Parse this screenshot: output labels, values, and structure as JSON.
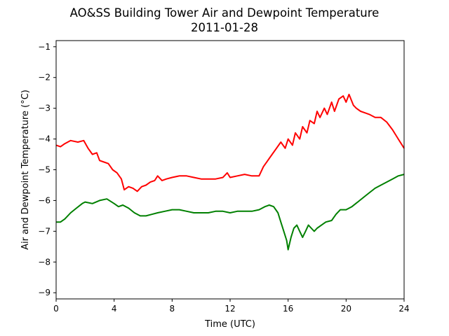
{
  "chart_data": {
    "type": "line",
    "title": "AO&SS Building Tower Air and Dewpoint Temperature",
    "subtitle": "2011-01-28",
    "xlabel": "Time (UTC)",
    "ylabel": "Air and Dewpoint Temperature (°C)",
    "xlim": [
      0,
      24
    ],
    "ylim": [
      -9.2,
      -0.8
    ],
    "xticks": [
      0,
      4,
      8,
      12,
      16,
      20,
      24
    ],
    "xtick_labels": [
      "0",
      "4",
      "8",
      "12",
      "16",
      "20",
      "24"
    ],
    "yticks": [
      -9,
      -8,
      -7,
      -6,
      -5,
      -4,
      -3,
      -2,
      -1
    ],
    "ytick_labels": [
      "−9",
      "−8",
      "−7",
      "−6",
      "−5",
      "−4",
      "−3",
      "−2",
      "−1"
    ],
    "grid": false,
    "legend": "none",
    "series": [
      {
        "color": "#ff0000",
        "points": [
          [
            0.0,
            -4.2
          ],
          [
            0.3,
            -4.25
          ],
          [
            0.6,
            -4.15
          ],
          [
            1.0,
            -4.05
          ],
          [
            1.5,
            -4.1
          ],
          [
            1.9,
            -4.05
          ],
          [
            2.2,
            -4.3
          ],
          [
            2.5,
            -4.5
          ],
          [
            2.8,
            -4.45
          ],
          [
            3.0,
            -4.7
          ],
          [
            3.3,
            -4.75
          ],
          [
            3.6,
            -4.8
          ],
          [
            3.9,
            -5.0
          ],
          [
            4.2,
            -5.1
          ],
          [
            4.5,
            -5.3
          ],
          [
            4.7,
            -5.65
          ],
          [
            5.0,
            -5.55
          ],
          [
            5.3,
            -5.6
          ],
          [
            5.6,
            -5.7
          ],
          [
            5.9,
            -5.55
          ],
          [
            6.2,
            -5.5
          ],
          [
            6.5,
            -5.4
          ],
          [
            6.8,
            -5.35
          ],
          [
            7.0,
            -5.2
          ],
          [
            7.3,
            -5.35
          ],
          [
            7.6,
            -5.3
          ],
          [
            8.0,
            -5.25
          ],
          [
            8.5,
            -5.2
          ],
          [
            9.0,
            -5.2
          ],
          [
            9.5,
            -5.25
          ],
          [
            10.0,
            -5.3
          ],
          [
            10.5,
            -5.3
          ],
          [
            11.0,
            -5.3
          ],
          [
            11.5,
            -5.25
          ],
          [
            11.8,
            -5.1
          ],
          [
            12.0,
            -5.25
          ],
          [
            12.5,
            -5.2
          ],
          [
            13.0,
            -5.15
          ],
          [
            13.5,
            -5.2
          ],
          [
            14.0,
            -5.2
          ],
          [
            14.3,
            -4.9
          ],
          [
            14.6,
            -4.7
          ],
          [
            14.9,
            -4.5
          ],
          [
            15.2,
            -4.3
          ],
          [
            15.5,
            -4.1
          ],
          [
            15.8,
            -4.3
          ],
          [
            16.0,
            -4.0
          ],
          [
            16.3,
            -4.2
          ],
          [
            16.5,
            -3.8
          ],
          [
            16.8,
            -4.0
          ],
          [
            17.0,
            -3.6
          ],
          [
            17.3,
            -3.8
          ],
          [
            17.5,
            -3.4
          ],
          [
            17.8,
            -3.5
          ],
          [
            18.0,
            -3.1
          ],
          [
            18.2,
            -3.3
          ],
          [
            18.5,
            -3.0
          ],
          [
            18.7,
            -3.2
          ],
          [
            19.0,
            -2.8
          ],
          [
            19.2,
            -3.1
          ],
          [
            19.5,
            -2.7
          ],
          [
            19.8,
            -2.6
          ],
          [
            20.0,
            -2.8
          ],
          [
            20.2,
            -2.55
          ],
          [
            20.5,
            -2.9
          ],
          [
            20.7,
            -3.0
          ],
          [
            21.0,
            -3.1
          ],
          [
            21.3,
            -3.15
          ],
          [
            21.6,
            -3.2
          ],
          [
            22.0,
            -3.3
          ],
          [
            22.4,
            -3.3
          ],
          [
            22.8,
            -3.45
          ],
          [
            23.2,
            -3.7
          ],
          [
            23.6,
            -4.0
          ],
          [
            24.0,
            -4.3
          ]
        ]
      },
      {
        "color": "#008000",
        "points": [
          [
            0.0,
            -6.7
          ],
          [
            0.3,
            -6.7
          ],
          [
            0.6,
            -6.6
          ],
          [
            1.0,
            -6.4
          ],
          [
            1.4,
            -6.25
          ],
          [
            1.8,
            -6.1
          ],
          [
            2.0,
            -6.05
          ],
          [
            2.5,
            -6.1
          ],
          [
            3.0,
            -6.0
          ],
          [
            3.5,
            -5.95
          ],
          [
            4.0,
            -6.1
          ],
          [
            4.3,
            -6.2
          ],
          [
            4.6,
            -6.15
          ],
          [
            5.0,
            -6.25
          ],
          [
            5.4,
            -6.4
          ],
          [
            5.8,
            -6.5
          ],
          [
            6.2,
            -6.5
          ],
          [
            6.6,
            -6.45
          ],
          [
            7.0,
            -6.4
          ],
          [
            7.5,
            -6.35
          ],
          [
            8.0,
            -6.3
          ],
          [
            8.5,
            -6.3
          ],
          [
            9.0,
            -6.35
          ],
          [
            9.5,
            -6.4
          ],
          [
            10.0,
            -6.4
          ],
          [
            10.5,
            -6.4
          ],
          [
            11.0,
            -6.35
          ],
          [
            11.5,
            -6.35
          ],
          [
            12.0,
            -6.4
          ],
          [
            12.5,
            -6.35
          ],
          [
            13.0,
            -6.35
          ],
          [
            13.5,
            -6.35
          ],
          [
            14.0,
            -6.3
          ],
          [
            14.4,
            -6.2
          ],
          [
            14.7,
            -6.15
          ],
          [
            15.0,
            -6.2
          ],
          [
            15.3,
            -6.4
          ],
          [
            15.5,
            -6.7
          ],
          [
            15.7,
            -7.0
          ],
          [
            15.9,
            -7.3
          ],
          [
            16.0,
            -7.6
          ],
          [
            16.2,
            -7.2
          ],
          [
            16.4,
            -6.9
          ],
          [
            16.6,
            -6.8
          ],
          [
            16.8,
            -7.0
          ],
          [
            17.0,
            -7.2
          ],
          [
            17.2,
            -7.0
          ],
          [
            17.4,
            -6.8
          ],
          [
            17.6,
            -6.9
          ],
          [
            17.8,
            -7.0
          ],
          [
            18.0,
            -6.9
          ],
          [
            18.3,
            -6.8
          ],
          [
            18.6,
            -6.7
          ],
          [
            19.0,
            -6.65
          ],
          [
            19.3,
            -6.45
          ],
          [
            19.6,
            -6.3
          ],
          [
            20.0,
            -6.3
          ],
          [
            20.4,
            -6.2
          ],
          [
            20.8,
            -6.05
          ],
          [
            21.2,
            -5.9
          ],
          [
            21.6,
            -5.75
          ],
          [
            22.0,
            -5.6
          ],
          [
            22.4,
            -5.5
          ],
          [
            22.8,
            -5.4
          ],
          [
            23.2,
            -5.3
          ],
          [
            23.6,
            -5.2
          ],
          [
            24.0,
            -5.15
          ]
        ]
      }
    ]
  }
}
